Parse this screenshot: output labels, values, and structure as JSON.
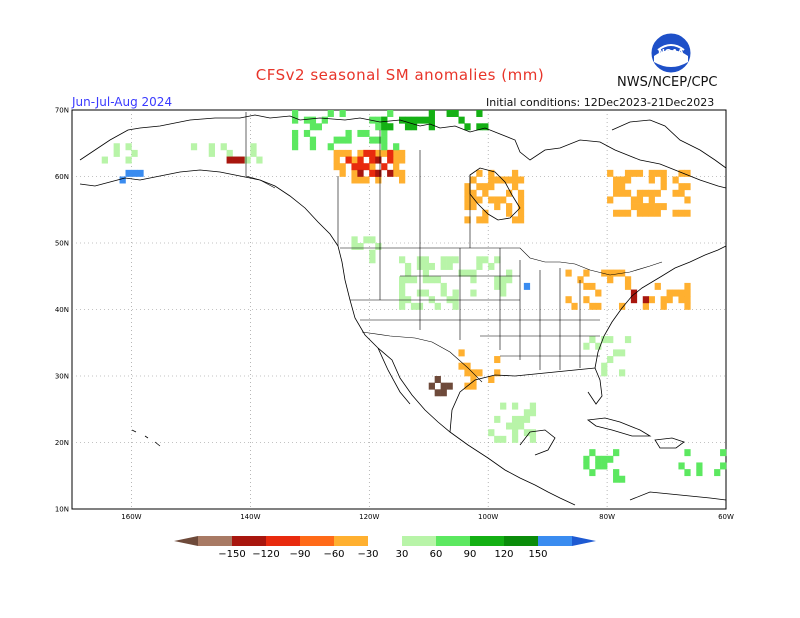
{
  "header": {
    "title": "CFSv2 seasonal SM anomalies (mm)",
    "agency": "NWS/NCEP/CPC",
    "season": "Jun-Jul-Aug 2024",
    "initial_conditions": "Initial conditions: 12Dec2023-21Dec2023",
    "logo_text": "NOAA"
  },
  "map": {
    "lat_labels": [
      "70N",
      "60N",
      "50N",
      "40N",
      "30N",
      "20N",
      "10N"
    ],
    "lon_labels": [
      "160W",
      "140W",
      "120W",
      "100W",
      "80W",
      "60W"
    ],
    "lon_range": [
      -170,
      -60
    ],
    "lat_range": [
      10,
      70
    ],
    "grid": true
  },
  "colorbar": {
    "labels": [
      "−150",
      "−120",
      "−90",
      "−60",
      "−30",
      "30",
      "60",
      "90",
      "120",
      "150"
    ],
    "colors": [
      "#6e4a3a",
      "#a87a64",
      "#a8160e",
      "#e82a0e",
      "#ff6a18",
      "#ffb030",
      "#ffffff",
      "#b8f4a8",
      "#5ce860",
      "#14b014",
      "#0a8c0a",
      "#3a8cf0",
      "#1e5ad2"
    ]
  },
  "anomaly_classes": {
    "dry_strong": "#a8160e",
    "dry_mod": "#e82a0e",
    "dry_light": "#ffb030",
    "dry_brown": "#6e4a3a",
    "wet_light": "#b8f4a8",
    "wet_mod": "#5ce860",
    "wet_strong": "#14b014",
    "wet_blue": "#3a8cf0"
  }
}
